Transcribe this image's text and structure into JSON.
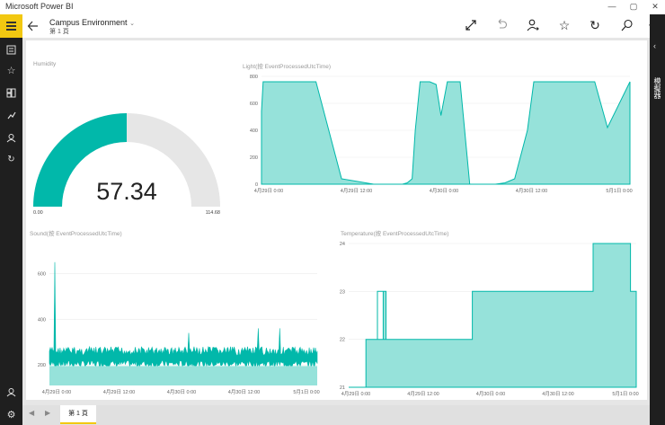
{
  "app": {
    "title": "Microsoft Power BI"
  },
  "report": {
    "title": "Campus Environment",
    "page_label": "第 1 頁",
    "chevron": "⌄"
  },
  "toolbar_icons": [
    "fullscreen-icon",
    "undo-icon",
    "share-icon",
    "favorite-icon",
    "refresh-icon",
    "search-icon",
    "more-icon"
  ],
  "nav_icons": [
    "menu-icon",
    "reports-icon",
    "favorites-icon",
    "dashboards-icon",
    "insights-icon",
    "profile-icon",
    "refresh-icon",
    "account-icon",
    "settings-icon"
  ],
  "right_panel": {
    "label": "模擬器"
  },
  "bottom": {
    "tab_label": "第 1 頁"
  },
  "colors": {
    "accent": "#f2c811",
    "teal": "#01b8aa",
    "teal_fill": "#96e2da",
    "gauge_bg": "#e6e6e6"
  },
  "chart_data": [
    {
      "type": "gauge",
      "title": "Humidity",
      "value": 57.34,
      "value_label": "57.34",
      "min": 0,
      "max": 114.68,
      "min_label": "0.00",
      "max_label": "114.68"
    },
    {
      "type": "area",
      "title": "Light(按 EventProcessedUtcTime)",
      "x_labels": [
        "4月29日 0:00",
        "4月29日 12:00",
        "4月30日 0:00",
        "4月30日 12:00",
        "5月1日 0:00"
      ],
      "y_ticks": [
        "800",
        "600",
        "400",
        "200",
        "0"
      ],
      "ylim": [
        0,
        800
      ],
      "x": [
        0,
        0.05,
        1.2,
        1.7,
        2.5,
        3.5,
        3.9,
        4.4,
        4.55,
        4.7,
        4.8,
        4.95,
        5.25,
        5.45,
        5.6,
        5.8,
        6.2,
        6.5,
        6.7,
        6.9,
        7.2,
        7.3,
        7.6,
        7.9,
        8.3,
        8.5,
        8.8,
        9.4,
        10.4,
        10.8,
        11.5
      ],
      "y": [
        540,
        760,
        760,
        760,
        40,
        0,
        0,
        0,
        10,
        40,
        400,
        760,
        760,
        740,
        510,
        760,
        760,
        0,
        0,
        0,
        0,
        0,
        10,
        40,
        400,
        760,
        760,
        760,
        760,
        420,
        760
      ]
    },
    {
      "type": "area",
      "title": "Sound(按 EventProcessedUtcTime)",
      "x_labels": [
        "4月29日 0:00",
        "4月29日 12:00",
        "4月30日 0:00",
        "4月30日 12:00",
        "5月1日 0:00"
      ],
      "y_ticks": [
        "600",
        "400",
        "200"
      ],
      "ylim": [
        110,
        700
      ],
      "noise": {
        "low": 190,
        "high": 280,
        "spikes": [
          [
            0.02,
            650
          ],
          [
            0.78,
            360
          ],
          [
            0.86,
            360
          ],
          [
            0.52,
            340
          ]
        ]
      }
    },
    {
      "type": "area",
      "title": "Temperature(按 EventProcessedUtcTime)",
      "x_labels": [
        "4月29日 0:00",
        "4月29日 12:00",
        "4月30日 0:00",
        "4月30日 12:00",
        "5月1日 0:00"
      ],
      "y_ticks": [
        "24",
        "23",
        "22",
        "21"
      ],
      "ylim": [
        21,
        24
      ],
      "x": [
        0,
        0.06,
        0.06,
        0.1,
        0.1,
        0.12,
        0.12,
        0.13,
        0.13,
        0.1,
        0.1,
        0.14,
        0.14,
        0.43,
        0.43,
        0.8,
        0.8,
        0.85,
        0.85,
        0.91,
        0.91,
        0.95,
        0.95,
        0.98,
        0.98,
        1
      ],
      "y": [
        21,
        21,
        22,
        22,
        23,
        23,
        22,
        22,
        23,
        23,
        22,
        22,
        22,
        22,
        23,
        23,
        23,
        23,
        24,
        24,
        24,
        24,
        24,
        24,
        23,
        23
      ]
    }
  ]
}
